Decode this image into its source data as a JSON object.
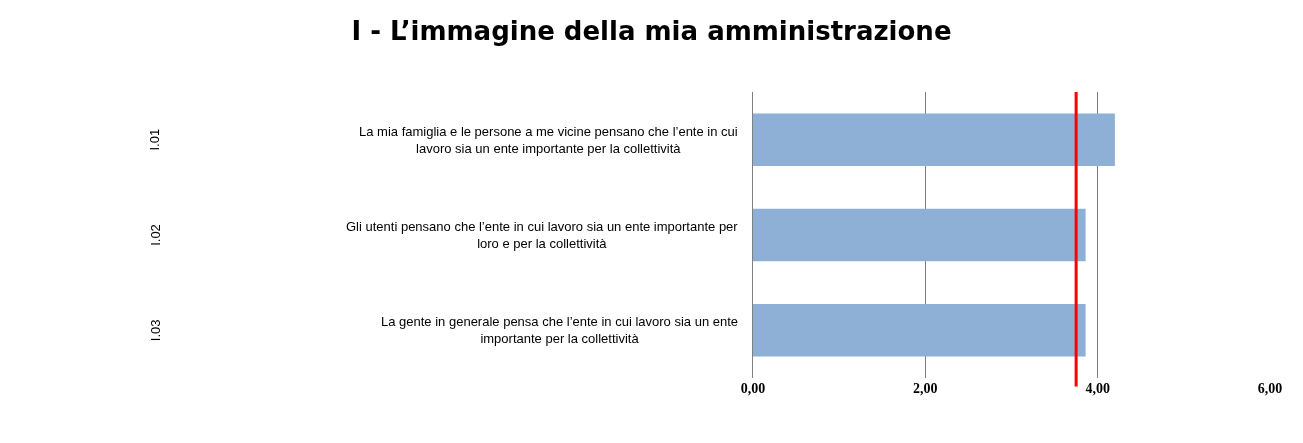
{
  "chart_data": {
    "type": "bar",
    "orientation": "horizontal",
    "title": "I - L’immagine della mia amministrazione",
    "categories": [
      "La mia famiglia e le persone a me vicine pensano che l’ente in cui lavoro sia un ente importante per la collettività",
      "Gli utenti pensano che l’ente in cui lavoro sia un ente importante per loro e per la collettività",
      "La gente in generale pensa che l’ente in cui lavoro sia un ente importante per la collettività"
    ],
    "values": [
      4.2,
      3.86,
      3.86
    ],
    "color": "#8eb0d6",
    "xlim": [
      0,
      6
    ],
    "xticks": [
      {
        "value": 0,
        "label": "0,00"
      },
      {
        "value": 2,
        "label": "2,00"
      },
      {
        "value": 4,
        "label": "4,00"
      },
      {
        "value": 6,
        "label": "6,00"
      }
    ],
    "grid": "x",
    "ref_lines": [
      {
        "axis": "x",
        "value": 3.75,
        "color": "#ff0000"
      }
    ],
    "annotations": [
      "I.01",
      "I.02",
      "I.03"
    ]
  }
}
